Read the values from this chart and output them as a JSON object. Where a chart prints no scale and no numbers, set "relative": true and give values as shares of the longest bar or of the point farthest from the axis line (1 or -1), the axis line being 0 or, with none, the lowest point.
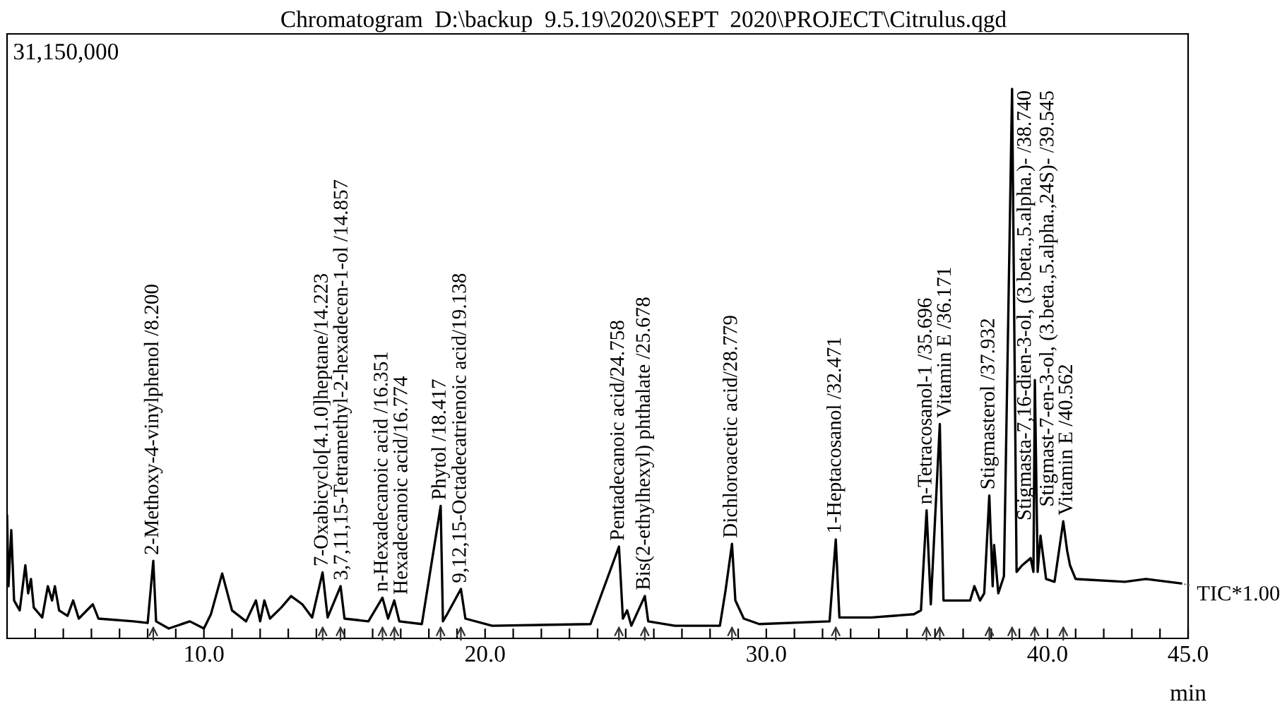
{
  "chart_data": {
    "type": "line",
    "title": "Chromatogram  D:\\backup  9.5.19\\2020\\SEPT  2020\\PROJECT\\Citrulus.qgd",
    "xlabel": "min",
    "relative": true,
    "grid": false,
    "legend": false,
    "marker": "none",
    "line_style": "solid",
    "xlim": [
      3,
      45
    ],
    "xticks": [
      {
        "value": 4,
        "label": null
      },
      {
        "value": 5,
        "label": null
      },
      {
        "value": 6,
        "label": null
      },
      {
        "value": 7,
        "label": null
      },
      {
        "value": 8,
        "label": null
      },
      {
        "value": 9,
        "label": null
      },
      {
        "value": 10,
        "label": "10.0"
      },
      {
        "value": 11,
        "label": null
      },
      {
        "value": 12,
        "label": null
      },
      {
        "value": 13,
        "label": null
      },
      {
        "value": 14,
        "label": null
      },
      {
        "value": 15,
        "label": null
      },
      {
        "value": 16,
        "label": null
      },
      {
        "value": 17,
        "label": null
      },
      {
        "value": 18,
        "label": null
      },
      {
        "value": 19,
        "label": null
      },
      {
        "value": 20,
        "label": "20.0"
      },
      {
        "value": 21,
        "label": null
      },
      {
        "value": 22,
        "label": null
      },
      {
        "value": 23,
        "label": null
      },
      {
        "value": 24,
        "label": null
      },
      {
        "value": 25,
        "label": null
      },
      {
        "value": 26,
        "label": null
      },
      {
        "value": 27,
        "label": null
      },
      {
        "value": 28,
        "label": null
      },
      {
        "value": 29,
        "label": null
      },
      {
        "value": 30,
        "label": "30.0"
      },
      {
        "value": 31,
        "label": null
      },
      {
        "value": 32,
        "label": null
      },
      {
        "value": 33,
        "label": null
      },
      {
        "value": 34,
        "label": null
      },
      {
        "value": 35,
        "label": null
      },
      {
        "value": 36,
        "label": null
      },
      {
        "value": 37,
        "label": null
      },
      {
        "value": 38,
        "label": null
      },
      {
        "value": 39,
        "label": null
      },
      {
        "value": 40,
        "label": "40.0"
      },
      {
        "value": 41,
        "label": null
      },
      {
        "value": 42,
        "label": null
      },
      {
        "value": 43,
        "label": null
      },
      {
        "value": 44,
        "label": null
      },
      {
        "value": 45,
        "label": "45.0"
      }
    ],
    "series": [
      {
        "name": "TIC*1.00",
        "color": "#000000",
        "x": [
          3.0,
          3.05,
          3.15,
          3.25,
          3.45,
          3.65,
          3.75,
          3.85,
          3.95,
          4.25,
          4.45,
          4.6,
          4.7,
          4.85,
          5.15,
          5.35,
          5.55,
          6.05,
          6.25,
          7.5,
          8.0,
          8.2,
          8.3,
          8.75,
          9.5,
          10.0,
          10.25,
          10.65,
          11.0,
          11.5,
          11.85,
          12.0,
          12.15,
          12.35,
          12.75,
          13.1,
          13.5,
          13.85,
          14.22,
          14.4,
          14.86,
          15.0,
          15.85,
          16.35,
          16.55,
          16.77,
          16.95,
          17.75,
          18.42,
          18.5,
          18.65,
          19.14,
          19.3,
          20.25,
          23.75,
          24.76,
          24.9,
          25.05,
          25.2,
          25.68,
          25.8,
          26.75,
          28.35,
          28.55,
          28.78,
          28.9,
          29.2,
          29.75,
          32.25,
          32.47,
          32.6,
          33.75,
          35.25,
          35.5,
          35.7,
          35.85,
          36.17,
          36.3,
          37.25,
          37.4,
          37.6,
          37.75,
          37.93,
          38.05,
          38.1,
          38.25,
          38.45,
          38.74,
          38.9,
          39.1,
          39.4,
          39.5,
          39.55,
          39.65,
          39.75,
          39.95,
          40.25,
          40.56,
          40.7,
          40.8,
          41.0,
          42.75,
          43.5,
          44.75
        ],
        "values": [
          0.223,
          0.095,
          0.197,
          0.069,
          0.051,
          0.133,
          0.082,
          0.108,
          0.056,
          0.038,
          0.095,
          0.069,
          0.095,
          0.051,
          0.041,
          0.069,
          0.036,
          0.062,
          0.036,
          0.031,
          0.028,
          0.141,
          0.031,
          0.018,
          0.031,
          0.018,
          0.044,
          0.118,
          0.051,
          0.031,
          0.069,
          0.031,
          0.069,
          0.036,
          0.056,
          0.077,
          0.062,
          0.038,
          0.12,
          0.038,
          0.095,
          0.036,
          0.031,
          0.074,
          0.036,
          0.069,
          0.031,
          0.026,
          0.241,
          0.031,
          0.044,
          0.09,
          0.036,
          0.023,
          0.026,
          0.167,
          0.036,
          0.051,
          0.023,
          0.077,
          0.031,
          0.023,
          0.023,
          0.087,
          0.172,
          0.069,
          0.036,
          0.026,
          0.031,
          0.18,
          0.038,
          0.038,
          0.044,
          0.051,
          0.233,
          0.062,
          0.39,
          0.069,
          0.069,
          0.095,
          0.069,
          0.082,
          0.26,
          0.095,
          0.17,
          0.082,
          0.113,
          1.0,
          0.121,
          0.133,
          0.146,
          0.121,
          0.47,
          0.121,
          0.187,
          0.108,
          0.103,
          0.213,
          0.159,
          0.133,
          0.108,
          0.103,
          0.108,
          0.1
        ]
      }
    ],
    "annotations": [
      {
        "text": "2-Methoxy-4-vinylphenol /8.200",
        "x": 8.2,
        "y": 0.141
      },
      {
        "text": "7-Oxabicyclo[4.1.0]heptane/14.223",
        "x": 14.223,
        "y": 0.12
      },
      {
        "text": "3,7,11,15-Tetramethyl-2-hexadecen-1-ol /14.857",
        "x": 14.857,
        "y": 0.095
      },
      {
        "text": "n-Hexadecanoic acid /16.351",
        "x": 16.351,
        "y": 0.074
      },
      {
        "text": "Hexadecanoic acid/16.774",
        "x": 16.774,
        "y": 0.069
      },
      {
        "text": "Phytol /18.417",
        "x": 18.417,
        "y": 0.241
      },
      {
        "text": "9,12,15-Octadecatrienoic acid/19.138",
        "x": 19.138,
        "y": 0.09
      },
      {
        "text": "Pentadecanoic acid/24.758",
        "x": 24.758,
        "y": 0.167
      },
      {
        "text": "Bis(2-ethylhexyl) phthalate /25.678",
        "x": 25.678,
        "y": 0.077
      },
      {
        "text": "Dichloroacetic acid/28.779",
        "x": 28.779,
        "y": 0.172
      },
      {
        "text": "1-Heptacosanol /32.471",
        "x": 32.471,
        "y": 0.18
      },
      {
        "text": "n-Tetracosanol-1 /35.696",
        "x": 35.696,
        "y": 0.233
      },
      {
        "text": "Vitamin E /36.171",
        "x": 36.171,
        "y": 0.39
      },
      {
        "text": "Stigmasterol /37.932",
        "x": 37.932,
        "y": 0.26
      },
      {
        "text": "Stigmasta-7,16-dien-3-ol, (3.beta.,5.alpha.)- /38.740",
        "x": 38.74,
        "y": 1.0
      },
      {
        "text": "Stigmast-7-en-3-ol, (3.beta.,5.alpha.,24S)- /39.545",
        "x": 39.545,
        "y": 0.47
      },
      {
        "text": "Vitamin E /40.562",
        "x": 40.562,
        "y": 0.213
      },
      "31,150,000"
    ]
  }
}
